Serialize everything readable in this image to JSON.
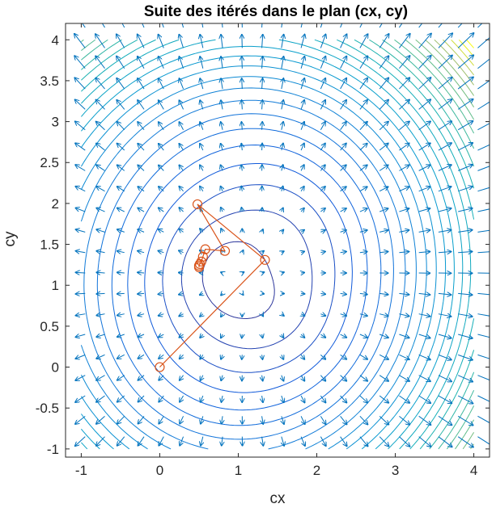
{
  "chart_data": {
    "type": "contour",
    "title": "Suite des itérés dans le plan (cx, cy)",
    "xlabel": "cx",
    "ylabel": "cy",
    "xlim": [
      -1.2,
      4.2
    ],
    "ylim": [
      -1.1,
      4.2
    ],
    "xticks": [
      -1,
      0,
      1,
      2,
      3,
      4
    ],
    "yticks": [
      -1,
      -0.5,
      0,
      0.5,
      1,
      1.5,
      2,
      2.5,
      3,
      3.5,
      4
    ],
    "grid": false,
    "contour_domain": {
      "x": [
        -1,
        4
      ],
      "y": [
        -1,
        4
      ]
    },
    "contour_levels": 28,
    "quiver_color": "#0072BD",
    "iterate_color": "#D95319",
    "iterates": {
      "x": [
        0,
        1.34,
        0.48,
        0.83,
        0.58,
        0.55,
        0.53,
        0.51,
        0.5,
        0.5
      ],
      "y": [
        0,
        1.31,
        1.99,
        1.42,
        1.44,
        1.35,
        1.29,
        1.26,
        1.24,
        1.22
      ]
    }
  }
}
